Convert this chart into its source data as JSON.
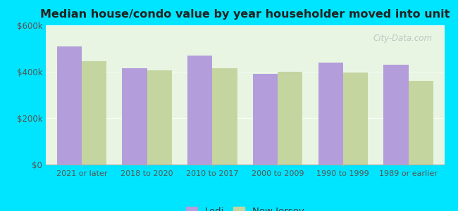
{
  "title": "Median house/condo value by year householder moved into unit",
  "categories": [
    "2021 or later",
    "2018 to 2020",
    "2010 to 2017",
    "2000 to 2009",
    "1990 to 1999",
    "1989 or earlier"
  ],
  "lodi_values": [
    510000,
    415000,
    470000,
    390000,
    440000,
    430000
  ],
  "nj_values": [
    445000,
    405000,
    415000,
    400000,
    398000,
    360000
  ],
  "lodi_color": "#b39ddb",
  "nj_color": "#c5d5a0",
  "background_outer": "#00e5ff",
  "background_inner_top": "#e8f5e9",
  "background_inner_bottom": "#f5faf0",
  "ylim": [
    0,
    600000
  ],
  "yticks": [
    0,
    200000,
    400000,
    600000
  ],
  "ytick_labels": [
    "$0",
    "$200k",
    "$400k",
    "$600k"
  ],
  "legend_lodi": "Lodi",
  "legend_nj": "New Jersey",
  "bar_width": 0.38,
  "watermark": "City-Data.com"
}
